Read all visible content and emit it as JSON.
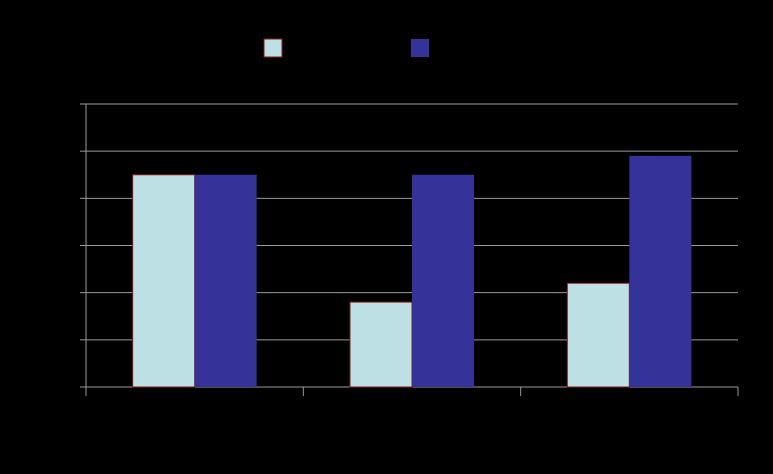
{
  "chart_data": {
    "type": "bar",
    "categories": [
      null,
      null,
      null
    ],
    "series": [
      {
        "color": "#bde0e4",
        "edge": "#8b1a1a",
        "values": [
          4.5,
          1.8,
          2.2
        ]
      },
      {
        "color": "#35339a",
        "values": [
          4.5,
          4.5,
          4.9
        ]
      }
    ],
    "ylim": [
      0,
      6
    ],
    "yticks": [
      0,
      1,
      2,
      3,
      4,
      5,
      6
    ],
    "grid": true,
    "legend": "top"
  }
}
